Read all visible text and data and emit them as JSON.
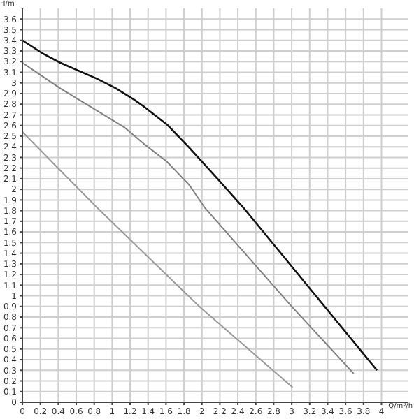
{
  "chart_data": {
    "type": "line",
    "xlabel": "Q/m³/h",
    "ylabel": "H/m",
    "xlim": [
      0,
      4.3
    ],
    "ylim": [
      0,
      3.7
    ],
    "xticks": [
      0,
      0.2,
      0.4,
      0.6,
      0.8,
      1,
      1.2,
      1.4,
      1.6,
      1.8,
      2,
      2.2,
      2.4,
      2.6,
      2.8,
      3,
      3.2,
      3.4,
      3.6,
      3.8,
      4
    ],
    "yticks": [
      0,
      0.1,
      0.2,
      0.3,
      0.4,
      0.5,
      0.6,
      0.7,
      0.8,
      0.9,
      1,
      1.1,
      1.2,
      1.3,
      1.4,
      1.5,
      1.6,
      1.7,
      1.8,
      1.9,
      2,
      2.1,
      2.2,
      2.3,
      2.4,
      2.5,
      2.6,
      2.7,
      2.8,
      2.9,
      3,
      3.1,
      3.2,
      3.3,
      3.4,
      3.5,
      3.6
    ],
    "grid": true,
    "marker": "none",
    "line_style": "solid",
    "series": [
      {
        "color": "#111111",
        "x": [
          0,
          0.22,
          0.42,
          0.83,
          1.04,
          1.25,
          1.35,
          1.61,
          1.86,
          2.12,
          2.46,
          3.95
        ],
        "values": [
          3.4,
          3.28,
          3.19,
          3.04,
          2.95,
          2.84,
          2.78,
          2.61,
          2.39,
          2.15,
          1.83,
          0.3
        ]
      },
      {
        "color": "#808080",
        "x": [
          0,
          0.42,
          0.83,
          1.14,
          1.35,
          1.61,
          1.86,
          2.03,
          3,
          3.69
        ],
        "values": [
          3.19,
          2.95,
          2.74,
          2.58,
          2.43,
          2.26,
          2.04,
          1.83,
          0.9,
          0.27
        ]
      },
      {
        "color": "#999999",
        "x": [
          0,
          0.42,
          0.83,
          1.97,
          2.12,
          3.01
        ],
        "values": [
          2.54,
          2.18,
          1.83,
          0.9,
          0.79,
          0.14
        ]
      }
    ]
  }
}
